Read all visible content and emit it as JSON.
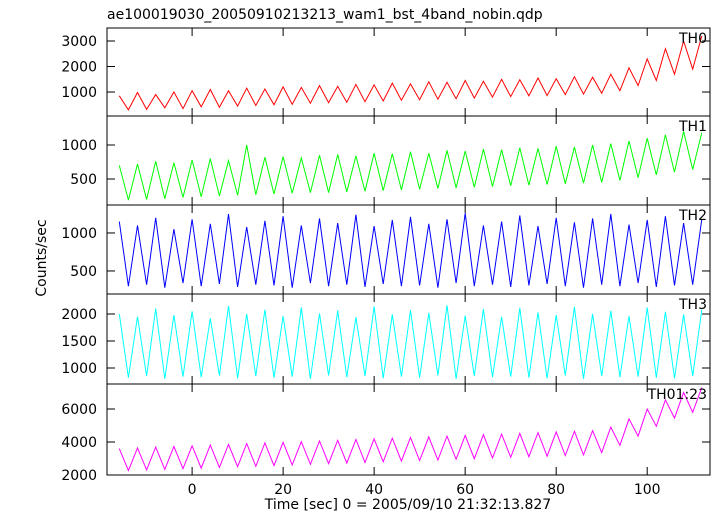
{
  "chart_data": {
    "type": "line",
    "title": "ae100019030_20050910213213_wam1_bst_4band_nobin.qdp",
    "x_label": "Time [sec] 0 = 2005/09/10 21:32:13.827",
    "y_label": "Counts/sec",
    "xlim": [
      -18.7,
      113.8
    ],
    "xticks": [
      0,
      20,
      40,
      60,
      80,
      100
    ],
    "x": [
      -16,
      -14,
      -12,
      -10,
      -8,
      -6,
      -4,
      -2,
      0,
      2,
      4,
      6,
      8,
      10,
      12,
      14,
      16,
      18,
      20,
      22,
      24,
      26,
      28,
      30,
      32,
      34,
      36,
      38,
      40,
      42,
      44,
      46,
      48,
      50,
      52,
      54,
      56,
      58,
      60,
      62,
      64,
      66,
      68,
      70,
      72,
      74,
      76,
      78,
      80,
      82,
      84,
      86,
      88,
      90,
      92,
      94,
      96,
      98,
      100,
      102,
      104,
      106,
      108,
      110,
      112
    ],
    "panels": [
      {
        "name": "TH0",
        "color": "#ff0000",
        "ylim": [
          60,
          3510
        ],
        "yticks": [
          1000,
          2000,
          3000
        ],
        "values": [
          850,
          300,
          980,
          320,
          900,
          380,
          1000,
          350,
          1050,
          420,
          1100,
          400,
          1050,
          450,
          1150,
          470,
          1120,
          500,
          1200,
          520,
          1180,
          560,
          1250,
          580,
          1220,
          600,
          1300,
          620,
          1280,
          650,
          1350,
          680,
          1320,
          700,
          1400,
          720,
          1380,
          740,
          1450,
          760,
          1420,
          800,
          1500,
          820,
          1480,
          850,
          1550,
          860,
          1520,
          900,
          1600,
          920,
          1580,
          950,
          1700,
          1050,
          1950,
          1250,
          2300,
          1450,
          2700,
          1700,
          3000,
          1900,
          3200
        ]
      },
      {
        "name": "TH1",
        "color": "#00ff00",
        "ylim": [
          118,
          1426
        ],
        "yticks": [
          500,
          1000
        ],
        "values": [
          700,
          190,
          720,
          200,
          760,
          210,
          740,
          230,
          780,
          240,
          800,
          250,
          770,
          260,
          1000,
          270,
          820,
          280,
          830,
          290,
          810,
          300,
          850,
          300,
          860,
          310,
          840,
          320,
          880,
          330,
          870,
          340,
          900,
          350,
          880,
          360,
          920,
          370,
          910,
          380,
          940,
          390,
          930,
          400,
          960,
          410,
          950,
          420,
          980,
          430,
          970,
          440,
          1000,
          450,
          1020,
          480,
          1060,
          520,
          1100,
          560,
          1150,
          600,
          1200,
          640,
          1180
        ]
      },
      {
        "name": "TH2",
        "color": "#0000ff",
        "ylim": [
          197,
          1368
        ],
        "yticks": [
          500,
          1000
        ],
        "values": [
          1150,
          300,
          1100,
          320,
          1200,
          280,
          1050,
          340,
          1180,
          300,
          1120,
          330,
          1250,
          290,
          1080,
          320,
          1160,
          310,
          1220,
          280,
          1100,
          340,
          1190,
          300,
          1130,
          320,
          1240,
          290,
          1090,
          330,
          1170,
          300,
          1210,
          310,
          1120,
          280,
          1180,
          340,
          1260,
          300,
          1100,
          320,
          1150,
          290,
          1230,
          310,
          1090,
          330,
          1200,
          300,
          1140,
          280,
          1190,
          320,
          1250,
          300,
          1110,
          340,
          1170,
          290,
          1220,
          310,
          1130,
          320,
          1180
        ]
      },
      {
        "name": "TH3",
        "color": "#00ffff",
        "ylim": [
          704,
          2370
        ],
        "yticks": [
          1000,
          1500,
          2000
        ],
        "values": [
          2000,
          820,
          1950,
          850,
          2100,
          800,
          1980,
          840,
          2050,
          830,
          1920,
          860,
          2150,
          810,
          2000,
          850,
          2080,
          820,
          1960,
          840,
          2120,
          800,
          2010,
          860,
          2060,
          830,
          1940,
          850,
          2140,
          810,
          1990,
          840,
          2070,
          820,
          2020,
          860,
          2160,
          800,
          1970,
          850,
          2090,
          830,
          1950,
          840,
          2110,
          820,
          2030,
          810,
          1980,
          860,
          2130,
          800,
          2000,
          850,
          2060,
          830,
          1960,
          840,
          2120,
          820,
          2040,
          810,
          1990,
          850,
          2080
        ]
      },
      {
        "name": "TH01:23",
        "color": "#ff00ff",
        "ylim": [
          2000,
          7515
        ],
        "yticks": [
          2000,
          4000,
          6000
        ],
        "values": [
          3600,
          2270,
          3640,
          2310,
          3690,
          2340,
          3730,
          2380,
          3770,
          2420,
          3810,
          2460,
          3850,
          2500,
          3900,
          2530,
          3940,
          2570,
          3980,
          2610,
          4020,
          2650,
          4060,
          2690,
          4100,
          2720,
          4150,
          2760,
          4190,
          2800,
          4230,
          2840,
          4270,
          2880,
          4310,
          2910,
          4360,
          2950,
          4400,
          2990,
          4440,
          3030,
          4480,
          3070,
          4520,
          3100,
          4570,
          3140,
          4610,
          3180,
          4650,
          3220,
          4690,
          3360,
          4900,
          3800,
          5400,
          4350,
          6000,
          4950,
          6550,
          5450,
          7000,
          5800,
          7300
        ]
      }
    ]
  }
}
